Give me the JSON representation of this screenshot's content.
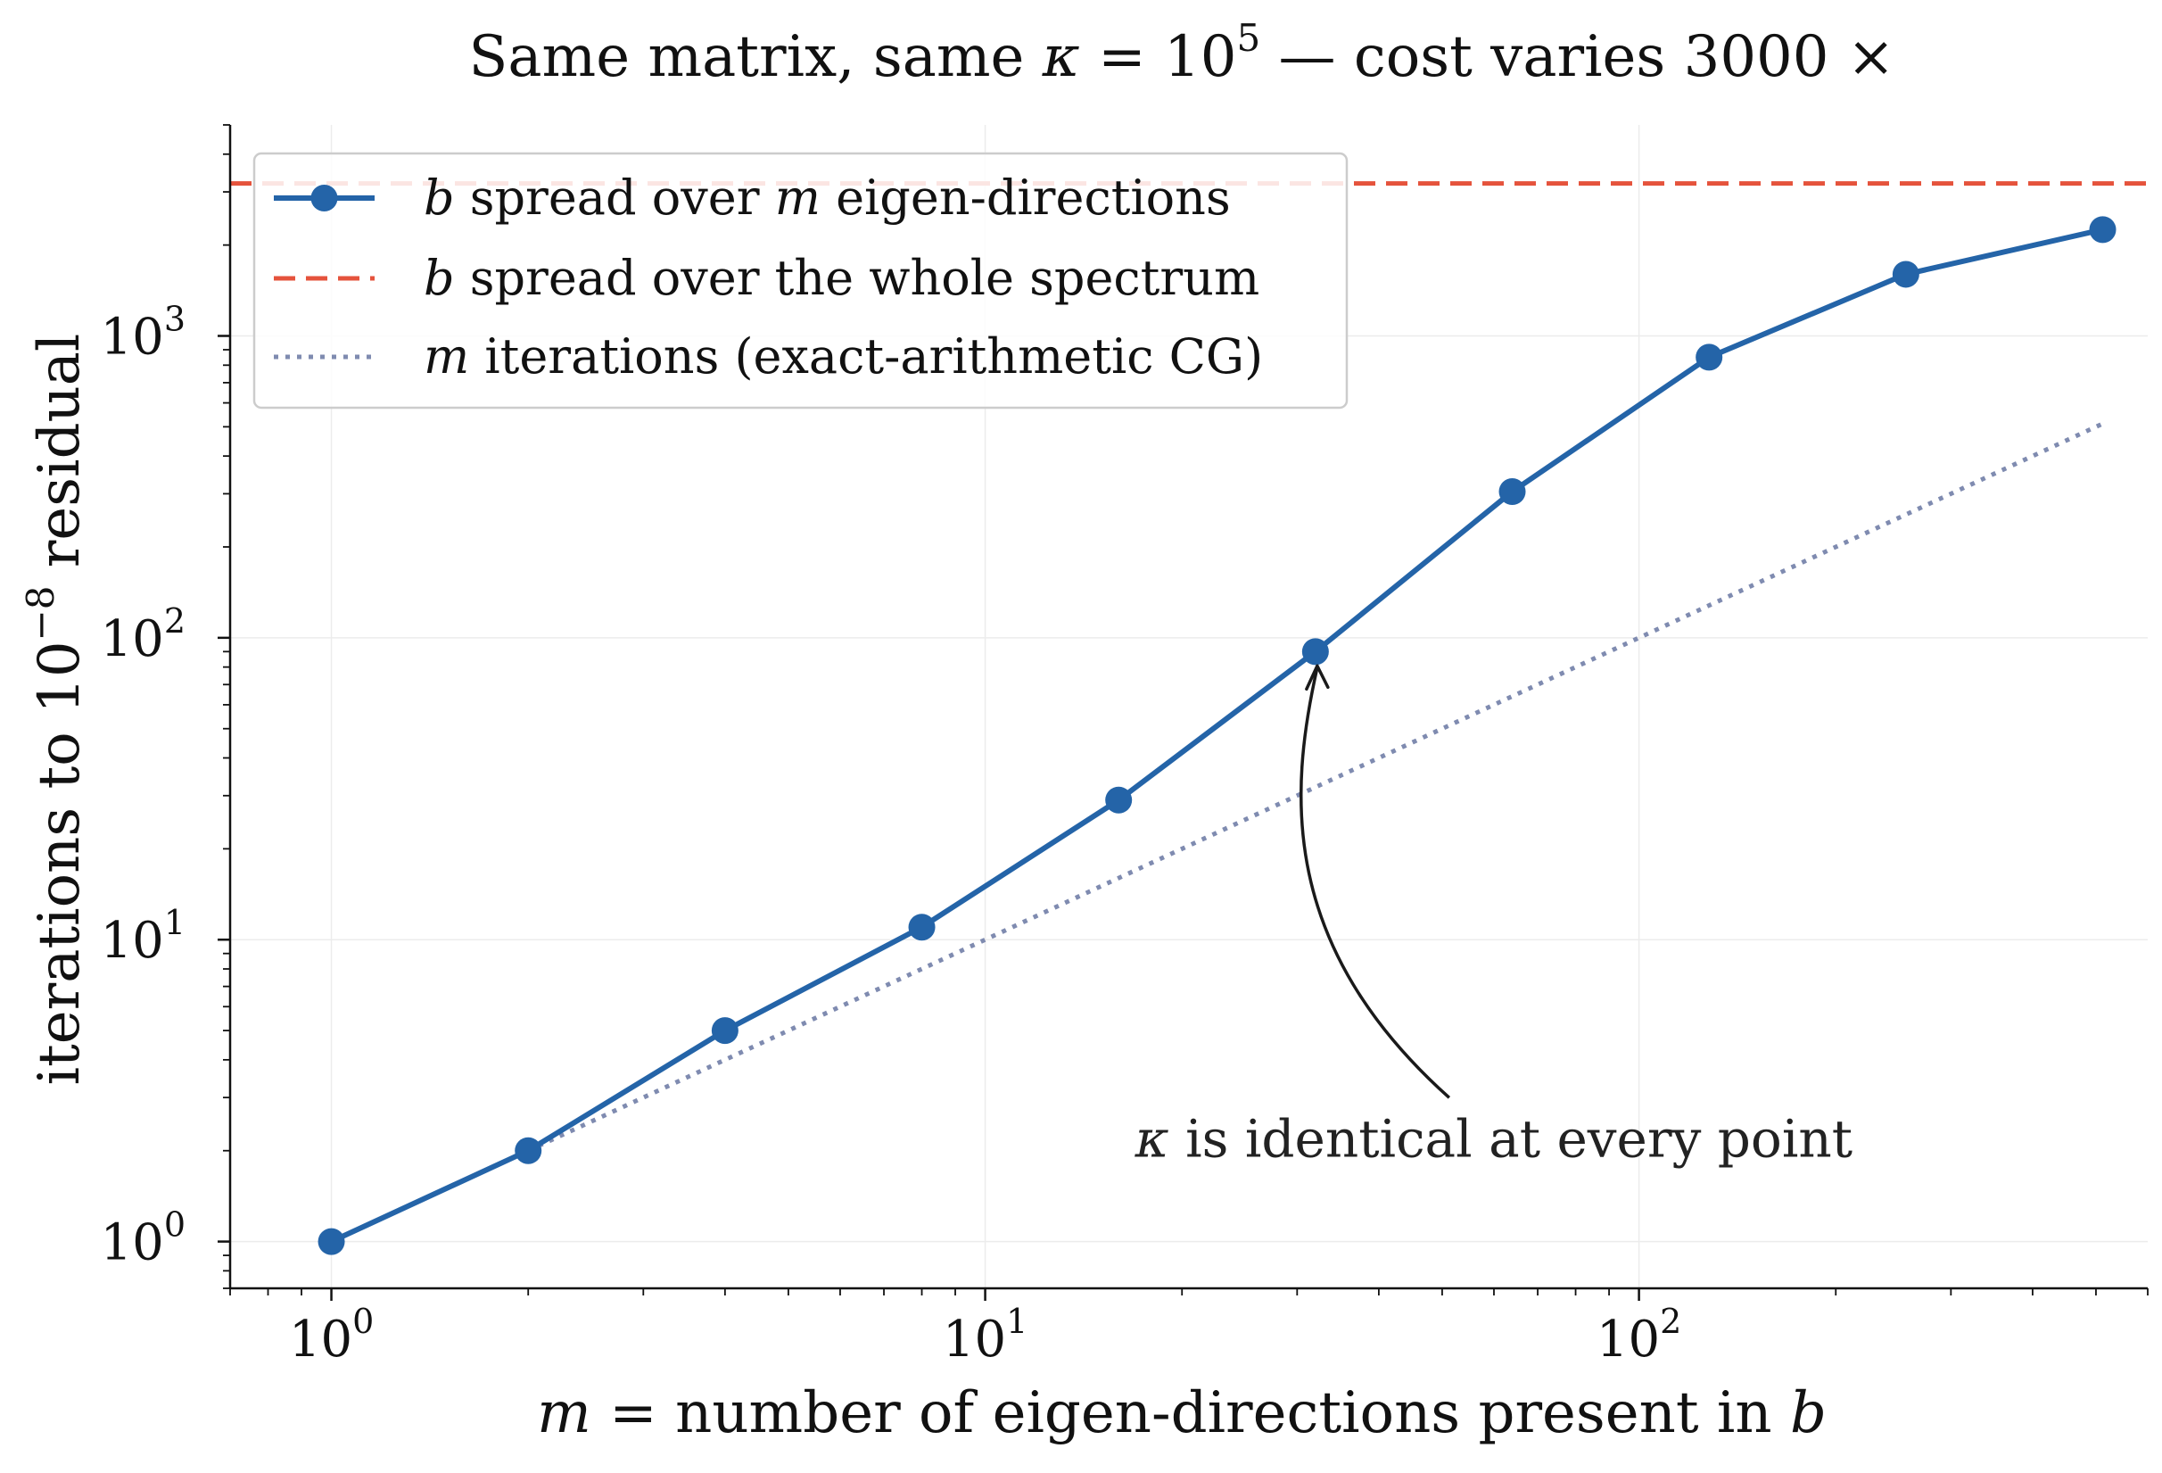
{
  "chart_data": {
    "type": "line",
    "title": {
      "prefix": "Same matrix, same ",
      "kappa": "κ",
      "eq": " = 10",
      "exp": "5",
      "dash": " — cost varies ",
      "factor": "3000",
      "times": " ×"
    },
    "xlabel": {
      "var": "m",
      "text": " = number of eigen-directions present in ",
      "var2": "b"
    },
    "ylabel": {
      "text": "iterations to 10",
      "exp": "−8",
      "text2": " residual"
    },
    "x_scale": "log",
    "y_scale": "log",
    "xlim": [
      0.7,
      600
    ],
    "ylim": [
      0.7,
      5000
    ],
    "x_ticks": [
      {
        "base": "10",
        "exp": "0",
        "value": 1
      },
      {
        "base": "10",
        "exp": "1",
        "value": 10
      },
      {
        "base": "10",
        "exp": "2",
        "value": 100
      }
    ],
    "y_ticks": [
      {
        "base": "10",
        "exp": "0",
        "value": 1
      },
      {
        "base": "10",
        "exp": "1",
        "value": 10
      },
      {
        "base": "10",
        "exp": "2",
        "value": 100
      },
      {
        "base": "10",
        "exp": "3",
        "value": 1000
      }
    ],
    "grid": true,
    "legend_position": "top-left",
    "series": [
      {
        "name": "spread over m eigen-directions",
        "legend_parts": [
          {
            "text": "b",
            "math": true
          },
          {
            "text": " spread over ",
            "math": false
          },
          {
            "text": "m",
            "math": true
          },
          {
            "text": " eigen-directions",
            "math": false
          }
        ],
        "style": "line-markers",
        "color": "#2464a8",
        "x": [
          1,
          2,
          4,
          8,
          16,
          32,
          64,
          128,
          256,
          512
        ],
        "y": [
          1,
          2,
          5,
          11,
          29,
          90,
          305,
          850,
          1600,
          2250
        ]
      },
      {
        "name": "spread over the whole spectrum",
        "legend_parts": [
          {
            "text": "b",
            "math": true
          },
          {
            "text": " spread over the whole spectrum",
            "math": false
          }
        ],
        "style": "dashed",
        "color": "#e5533c",
        "y_constant": 3200
      },
      {
        "name": "iterations (exact-arithmetic CG)",
        "legend_parts": [
          {
            "text": "m",
            "math": true
          },
          {
            "text": " iterations (exact-arithmetic CG)",
            "math": false
          }
        ],
        "style": "dotted",
        "color": "#7f8bb0",
        "x": [
          2,
          512
        ],
        "y": [
          2,
          512
        ]
      }
    ],
    "annotation": {
      "kappa": "κ",
      "text": " is identical at every point",
      "x": 32,
      "y": 90
    }
  }
}
